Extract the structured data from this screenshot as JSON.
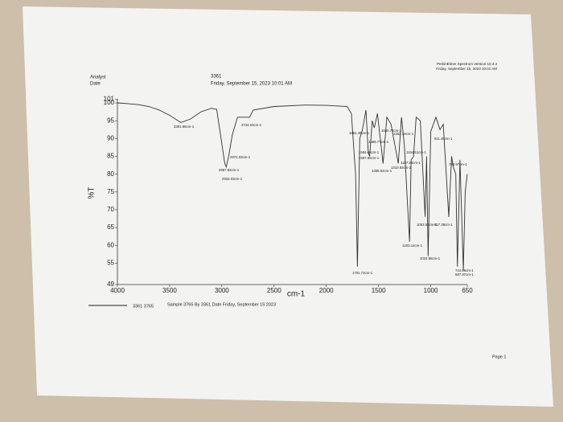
{
  "chart_data": {
    "type": "line",
    "header": {
      "analyst_label": "Analyst",
      "date_label": "Date",
      "sample": "3361",
      "date": "Friday, September 15, 2023 10:01 AM",
      "software": "PerkinElmer Spectrum Version 10.4.4",
      "software_date": "Friday, September 15, 2023 10:01 AM"
    },
    "y_label": "%T",
    "x_label": "cm-1",
    "legend": {
      "name": "3361 3765",
      "description": "Sample 3765 By 3361 Date Friday, September 15 2023"
    },
    "footer": "Page 1",
    "color": "#333333",
    "x": [
      4000,
      3900,
      3800,
      3700,
      3600,
      3500,
      3391.86,
      3300,
      3200,
      3100,
      3050,
      2972.03,
      2957.82,
      2932.03,
      2900,
      2850,
      2734.03,
      2700,
      2500,
      2200,
      2000,
      1800,
      1760,
      1720,
      1701.72,
      1680,
      1654,
      1620,
      1597.66,
      1584.66,
      1560,
      1540,
      1510,
      1456,
      1420,
      1380,
      1310.83,
      1280,
      1252.1,
      1203.12,
      1187.24,
      1164.51,
      1140,
      1100,
      1053.57,
      1040,
      1024.86,
      1000,
      950,
      911.45,
      880,
      827.38,
      800,
      784,
      760,
      744.96,
      720,
      687.87,
      670,
      650
    ],
    "values": [
      100,
      99.8,
      99.5,
      99,
      98,
      96.5,
      94.5,
      95.5,
      97.5,
      98.5,
      98.2,
      83,
      82,
      85.5,
      91,
      96,
      96,
      98,
      99,
      99.4,
      99.3,
      99,
      97,
      80,
      54,
      90,
      92.5,
      98,
      86,
      85,
      95,
      93,
      97,
      83,
      96,
      94,
      83,
      96,
      88,
      61,
      84,
      85,
      96,
      95,
      68,
      85,
      57,
      92,
      96,
      92.5,
      94,
      68,
      85,
      82,
      80,
      54,
      84,
      53,
      75,
      80
    ],
    "xlim": [
      4000,
      650
    ],
    "ylim": [
      49,
      101
    ],
    "xticks": [
      4000,
      3500,
      3000,
      2500,
      2000,
      1500,
      1000,
      650
    ],
    "yticks": [
      49,
      55,
      60,
      65,
      70,
      75,
      80,
      85,
      90,
      95,
      100,
      101
    ],
    "annotations": [
      "3391.86cm-1",
      "2734.03cm-1",
      "2972.03cm-1",
      "2957.82cm-1",
      "2932.03cm-1",
      "1701.72cm-1",
      "1654.46cm-1",
      "1540.79cm-1",
      "1589.77cm-1",
      "1584.66cm-1",
      "1597.66cm-1",
      "1456.62cm-1",
      "1310.83cm-1",
      "1252.10cm-1",
      "1187.24cm-1",
      "1164.51cm-1",
      "911.45cm-1",
      "784.97cm-1",
      "1203.12cm-1",
      "1053.57cm-1",
      "827.38cm-1",
      "1024.86cm-1",
      "744.96cm-1",
      "687.87cm-1"
    ]
  }
}
